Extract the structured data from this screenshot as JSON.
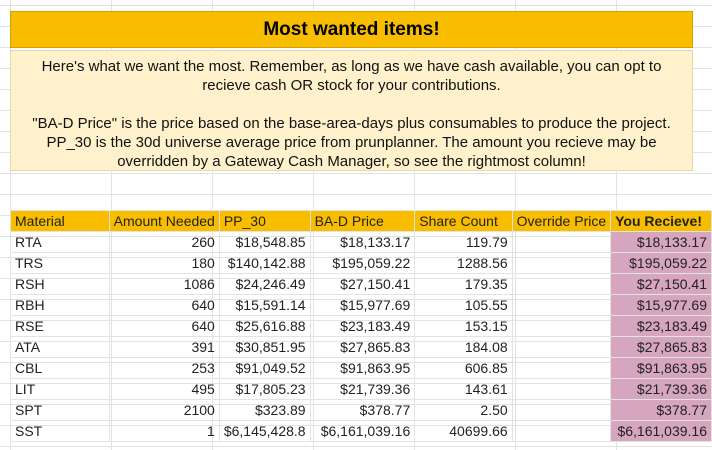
{
  "colors": {
    "header_bg": "#f9bd00",
    "intro_bg": "#fff1cc",
    "last_col_bg": "#d5a6bd",
    "grid": "#e2e3e3"
  },
  "title": "Most wanted items!",
  "intro": {
    "p1": "Here's what we want the most. Remember, as long as we have cash available, you can opt to recieve cash OR stock for your contributions.",
    "p2": "\"BA-D Price\" is the price based on the base-area-days plus consumables to produce the project. PP_30 is the 30d universe average price from prunplanner. The amount you recieve may be overridden by a Gateway Cash Manager, so see the rightmost column!"
  },
  "table": {
    "headers": [
      "Material",
      "Amount Needed",
      "PP_30",
      "BA-D Price",
      "Share Count",
      "Override Price",
      "You Recieve!"
    ],
    "rows": [
      [
        "RTA",
        "260",
        "$18,548.85",
        "$18,133.17",
        "119.79",
        "",
        "$18,133.17"
      ],
      [
        "TRS",
        "180",
        "$140,142.88",
        "$195,059.22",
        "1288.56",
        "",
        "$195,059.22"
      ],
      [
        "RSH",
        "1086",
        "$24,246.49",
        "$27,150.41",
        "179.35",
        "",
        "$27,150.41"
      ],
      [
        "RBH",
        "640",
        "$15,591.14",
        "$15,977.69",
        "105.55",
        "",
        "$15,977.69"
      ],
      [
        "RSE",
        "640",
        "$25,616.88",
        "$23,183.49",
        "153.15",
        "",
        "$23,183.49"
      ],
      [
        "ATA",
        "391",
        "$30,851.95",
        "$27,865.83",
        "184.08",
        "",
        "$27,865.83"
      ],
      [
        "CBL",
        "253",
        "$91,049.52",
        "$91,863.95",
        "606.85",
        "",
        "$91,863.95"
      ],
      [
        "LIT",
        "495",
        "$17,805.23",
        "$21,739.36",
        "143.61",
        "",
        "$21,739.36"
      ],
      [
        "SPT",
        "2100",
        "$323.89",
        "$378.77",
        "2.50",
        "",
        "$378.77"
      ],
      [
        "SST",
        "1",
        "$6,145,428.8",
        "$6,161,039.16",
        "40699.66",
        "",
        "$6,161,039.16"
      ]
    ]
  }
}
